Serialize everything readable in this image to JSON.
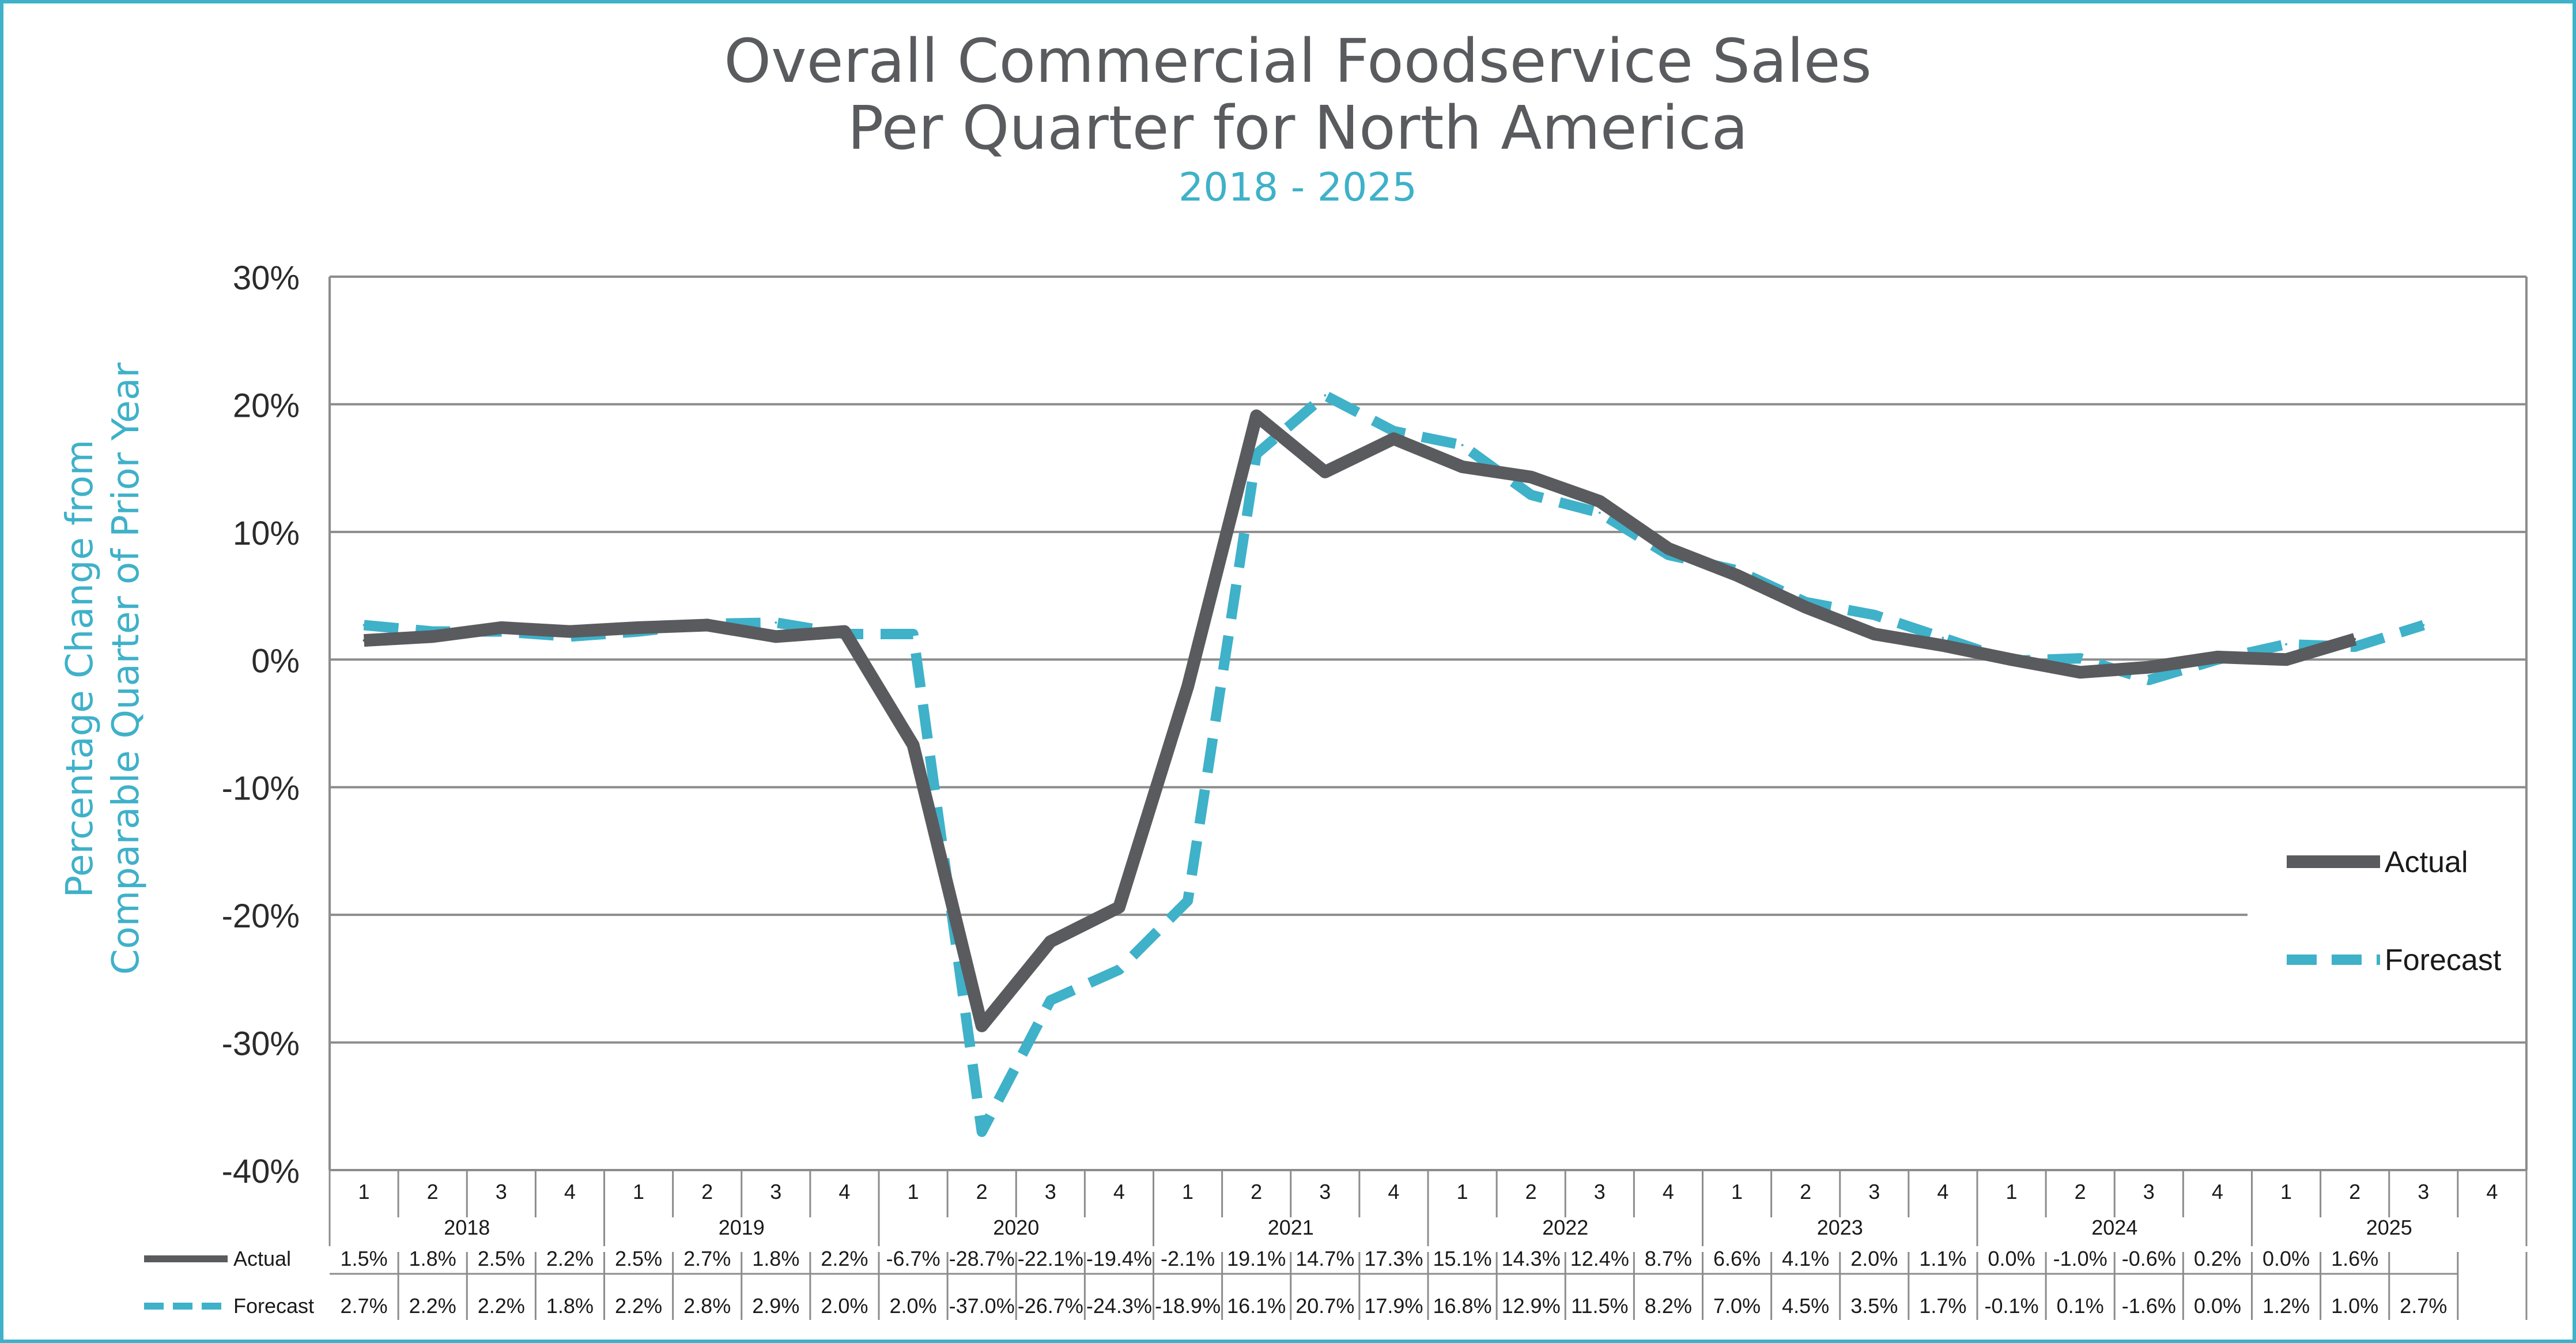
{
  "chart_data": {
    "type": "line",
    "title_line1": "Overall Commercial Foodservice Sales",
    "title_line2": "Per Quarter for North America",
    "subtitle": "2018 - 2025",
    "ylabel_line1": "Percentage Change from",
    "ylabel_line2": "Comparable Quarter of Prior Year",
    "ylim": [
      -40,
      30
    ],
    "yticks": [
      30,
      20,
      10,
      0,
      -10,
      -20,
      -30,
      -40
    ],
    "ytick_labels": [
      "30%",
      "20%",
      "10%",
      "0%",
      "-10%",
      "-20%",
      "-30%",
      "-40%"
    ],
    "quarters": [
      "1",
      "2",
      "3",
      "4"
    ],
    "years": [
      "2018",
      "2019",
      "2020",
      "2021",
      "2022",
      "2023",
      "2024",
      "2025"
    ],
    "series": [
      {
        "name": "Actual",
        "color": "#5a5b5e",
        "style": "solid",
        "values": [
          1.5,
          1.8,
          2.5,
          2.2,
          2.5,
          2.7,
          1.8,
          2.2,
          -6.7,
          -28.7,
          -22.1,
          -19.4,
          -2.1,
          19.1,
          14.7,
          17.3,
          15.1,
          14.3,
          12.4,
          8.7,
          6.6,
          4.1,
          2.0,
          1.1,
          0.0,
          -1.0,
          -0.6,
          0.2,
          0.0,
          1.6,
          null,
          null
        ],
        "labels": [
          "1.5%",
          "1.8%",
          "2.5%",
          "2.2%",
          "2.5%",
          "2.7%",
          "1.8%",
          "2.2%",
          "-6.7%",
          "-28.7%",
          "-22.1%",
          "-19.4%",
          "-2.1%",
          "19.1%",
          "14.7%",
          "17.3%",
          "15.1%",
          "14.3%",
          "12.4%",
          "8.7%",
          "6.6%",
          "4.1%",
          "2.0%",
          "1.1%",
          "0.0%",
          "-1.0%",
          "-0.6%",
          "0.2%",
          "0.0%",
          "1.6%",
          "",
          ""
        ]
      },
      {
        "name": "Forecast",
        "color": "#3fb1c9",
        "style": "dashed",
        "values": [
          2.7,
          2.2,
          2.2,
          1.8,
          2.2,
          2.8,
          2.9,
          2.0,
          2.0,
          -37.0,
          -26.7,
          -24.3,
          -18.9,
          16.1,
          20.7,
          17.9,
          16.8,
          12.9,
          11.5,
          8.2,
          7.0,
          4.5,
          3.5,
          1.7,
          -0.1,
          0.1,
          -1.6,
          0.0,
          1.2,
          1.0,
          2.7,
          null
        ],
        "labels": [
          "2.7%",
          "2.2%",
          "2.2%",
          "1.8%",
          "2.2%",
          "2.8%",
          "2.9%",
          "2.0%",
          "2.0%",
          "-37.0%",
          "-26.7%",
          "-24.3%",
          "-18.9%",
          "16.1%",
          "20.7%",
          "17.9%",
          "16.8%",
          "12.9%",
          "11.5%",
          "8.2%",
          "7.0%",
          "4.5%",
          "3.5%",
          "1.7%",
          "-0.1%",
          "0.1%",
          "-1.6%",
          "0.0%",
          "1.2%",
          "1.0%",
          "2.7%",
          ""
        ]
      }
    ],
    "legend": [
      "Actual",
      "Forecast"
    ],
    "legend_position": "right"
  }
}
